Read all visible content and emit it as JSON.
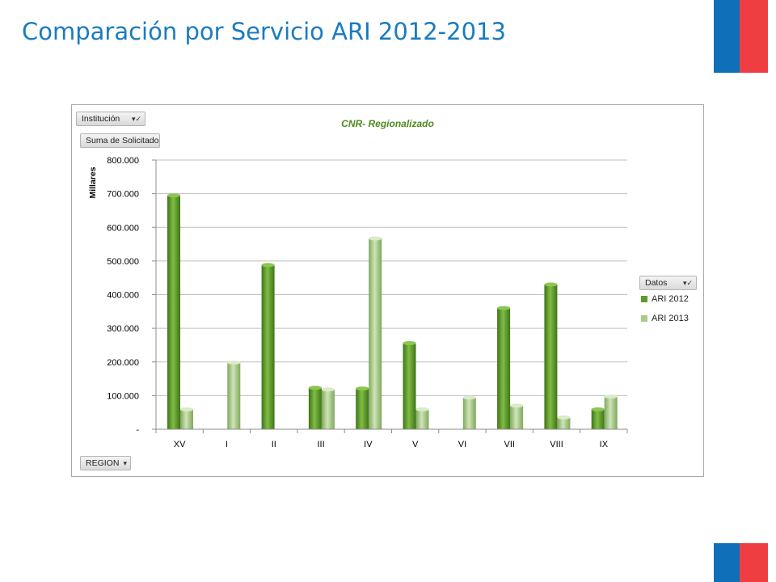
{
  "slide": {
    "title": "Comparación por Servicio ARI 2012-2013",
    "title_color": "#1a7bc1",
    "flag_colors": {
      "blue": "#0f6fb8",
      "red": "#ef3e42"
    }
  },
  "pivot": {
    "filter_field": "Institución",
    "value_field": "Suma de Solicitado",
    "axis_field": "REGION",
    "legend_field": "Datos",
    "filter_icon": "filter-dropdown-icon",
    "axis_icon": "dropdown-arrow-icon"
  },
  "chart_data": {
    "type": "bar",
    "title": "CNR- Regionalizado",
    "xlabel": "",
    "ylabel": "Millares",
    "categories": [
      "XV",
      "I",
      "II",
      "III",
      "IV",
      "V",
      "VI",
      "VII",
      "VIII",
      "IX"
    ],
    "series": [
      {
        "name": "ARI 2012",
        "color": "#5e9a2a",
        "values": [
          695000,
          0,
          488000,
          123000,
          121000,
          256000,
          0,
          360000,
          430000,
          59000
        ]
      },
      {
        "name": "ARI 2013",
        "color": "#a9cb86",
        "values": [
          59000,
          198000,
          0,
          118000,
          567000,
          59000,
          94000,
          70000,
          35000,
          97000
        ]
      }
    ],
    "ylim": [
      0,
      800000
    ],
    "yticks": [
      0,
      100000,
      200000,
      300000,
      400000,
      500000,
      600000,
      700000,
      800000
    ],
    "ytick_labels": [
      "-",
      "100.000",
      "200.000",
      "300.000",
      "400.000",
      "500.000",
      "600.000",
      "700.000",
      "800.000"
    ],
    "grid": true,
    "legend_position": "right"
  }
}
